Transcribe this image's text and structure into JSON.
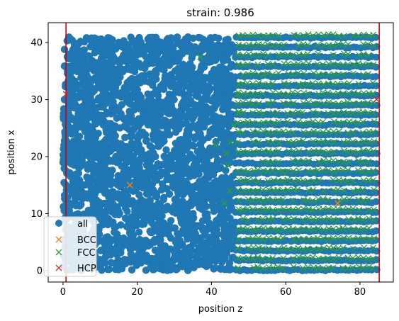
{
  "chart_data": {
    "type": "scatter",
    "title": "strain: 0.986",
    "xlabel": "position z",
    "ylabel": "position x",
    "xlim": [
      -4,
      89
    ],
    "ylim": [
      -2,
      43.5
    ],
    "xticks": [
      0,
      20,
      40,
      60,
      80
    ],
    "yticks": [
      0,
      10,
      20,
      30,
      40
    ],
    "grid": false,
    "legend_position": "lower-left",
    "colors": {
      "all": "#1f77b4",
      "BCC": "#ff7f0e",
      "FCC": "#2ca02c",
      "HCP": "#d62728",
      "vline": "#cc0000"
    },
    "vlines": [
      0.8,
      85.2
    ],
    "regions": {
      "disordered_z_range": [
        0,
        46
      ],
      "crystalline_z_range": [
        46,
        85
      ],
      "x_range": [
        0,
        41
      ]
    },
    "series": [
      {
        "name": "all",
        "marker": "o"
      },
      {
        "name": "BCC",
        "marker": "x",
        "points": [
          [
            18,
            15
          ],
          [
            74,
            11.8
          ]
        ]
      },
      {
        "name": "FCC",
        "marker": "x",
        "points": [
          [
            37,
            37.5
          ],
          [
            44,
            20.5
          ],
          [
            45,
            14
          ],
          [
            43.5,
            11.8
          ],
          [
            44.5,
            18.5
          ],
          [
            45,
            22.5
          ],
          [
            41,
            22
          ],
          [
            47,
            30.8
          ],
          [
            47.5,
            27.8
          ],
          [
            46,
            25.5
          ]
        ]
      },
      {
        "name": "HCP",
        "marker": "x",
        "points": [
          [
            0.8,
            31
          ],
          [
            84.5,
            30
          ]
        ]
      }
    ]
  }
}
